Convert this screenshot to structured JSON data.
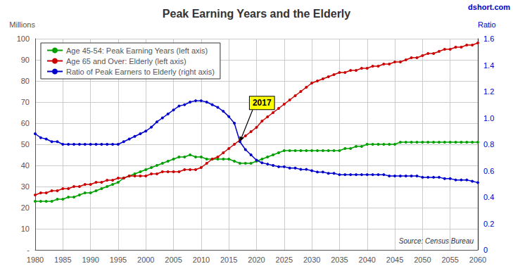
{
  "chart_data": {
    "type": "line",
    "title": "Peak Earning Years and the Elderly",
    "watermark": "dshort.com",
    "source": "Source: Census Bureau",
    "ylabel": "Millions",
    "y2label": "Ratio",
    "x": [
      1980,
      1981,
      1982,
      1983,
      1984,
      1985,
      1986,
      1987,
      1988,
      1989,
      1990,
      1991,
      1992,
      1993,
      1994,
      1995,
      1996,
      1997,
      1998,
      1999,
      2000,
      2001,
      2002,
      2003,
      2004,
      2005,
      2006,
      2007,
      2008,
      2009,
      2010,
      2011,
      2012,
      2013,
      2014,
      2015,
      2016,
      2017,
      2018,
      2019,
      2020,
      2021,
      2022,
      2023,
      2024,
      2025,
      2026,
      2027,
      2028,
      2029,
      2030,
      2031,
      2032,
      2033,
      2034,
      2035,
      2036,
      2037,
      2038,
      2039,
      2040,
      2041,
      2042,
      2043,
      2044,
      2045,
      2046,
      2047,
      2048,
      2049,
      2050,
      2051,
      2052,
      2053,
      2054,
      2055,
      2056,
      2057,
      2058,
      2059,
      2060
    ],
    "xlim": [
      1980,
      2060
    ],
    "xticks": [
      1980,
      1985,
      1990,
      1995,
      2000,
      2005,
      2010,
      2015,
      2020,
      2025,
      2030,
      2035,
      2040,
      2045,
      2050,
      2055,
      2060
    ],
    "ylim": [
      0,
      100
    ],
    "yticks": [
      {
        "value": 0,
        "label": "-"
      },
      10,
      20,
      30,
      40,
      50,
      60,
      70,
      80,
      90,
      100
    ],
    "y2lim": [
      0,
      1.6
    ],
    "y2ticks": [
      0,
      0.2,
      0.4,
      0.6,
      0.8,
      {
        "value": 1.0,
        "label": "1.0"
      },
      1.2,
      1.4,
      1.6
    ],
    "grid": true,
    "legend": "upper left",
    "marker": "circle",
    "annotations": [
      {
        "text": "2017",
        "x": 2017,
        "y": 0.82,
        "axis": "y2"
      }
    ],
    "series": [
      {
        "name": "Age 45-54: Peak Earning Years (left axis)",
        "color": "#00A000",
        "values": [
          23,
          23,
          23,
          23,
          24,
          24,
          25,
          25,
          26,
          27,
          27,
          28,
          29,
          30,
          31,
          32,
          34,
          35,
          36,
          37,
          38,
          39,
          40,
          41,
          42,
          43,
          44,
          44,
          45,
          44,
          44,
          43,
          43,
          43,
          43,
          43,
          42,
          41,
          41,
          41,
          42,
          43,
          44,
          45,
          46,
          47,
          47,
          47,
          47,
          47,
          47,
          47,
          47,
          47,
          47,
          47,
          48,
          48,
          49,
          49,
          50,
          50,
          50,
          50,
          50,
          50,
          51,
          51,
          51,
          51,
          51,
          51,
          51,
          51,
          51,
          51,
          51,
          51,
          51,
          51,
          51
        ]
      },
      {
        "name": "Age 65 and Over: Elderly (left axis)",
        "color": "#CC0000",
        "values": [
          26,
          27,
          27,
          28,
          28,
          29,
          29,
          30,
          30,
          31,
          31,
          32,
          32,
          33,
          33,
          34,
          34,
          35,
          35,
          35,
          35,
          36,
          36,
          37,
          37,
          37,
          37,
          38,
          38,
          38,
          39,
          41,
          43,
          44,
          46,
          48,
          50,
          52,
          54,
          56,
          58,
          61,
          63,
          65,
          67,
          69,
          71,
          73,
          75,
          77,
          79,
          80,
          81,
          82,
          83,
          84,
          84,
          85,
          85,
          86,
          86,
          87,
          87,
          88,
          88,
          89,
          89,
          90,
          91,
          91,
          92,
          93,
          93,
          94,
          95,
          95,
          96,
          96,
          97,
          97,
          98
        ]
      },
      {
        "name": "Ratio of Peak Earners to Elderly (right axis)",
        "color": "#0000CC",
        "axis": "y2",
        "values": [
          0.88,
          0.85,
          0.84,
          0.82,
          0.82,
          0.8,
          0.8,
          0.8,
          0.8,
          0.8,
          0.8,
          0.8,
          0.8,
          0.8,
          0.8,
          0.8,
          0.82,
          0.84,
          0.86,
          0.88,
          0.9,
          0.93,
          0.97,
          1.0,
          1.03,
          1.06,
          1.09,
          1.1,
          1.12,
          1.13,
          1.13,
          1.12,
          1.1,
          1.08,
          1.05,
          1.01,
          0.96,
          0.82,
          0.76,
          0.72,
          0.68,
          0.66,
          0.65,
          0.64,
          0.63,
          0.63,
          0.62,
          0.62,
          0.61,
          0.61,
          0.6,
          0.59,
          0.59,
          0.58,
          0.58,
          0.57,
          0.57,
          0.57,
          0.57,
          0.57,
          0.57,
          0.57,
          0.57,
          0.57,
          0.56,
          0.56,
          0.56,
          0.56,
          0.56,
          0.56,
          0.55,
          0.55,
          0.55,
          0.55,
          0.54,
          0.54,
          0.53,
          0.53,
          0.53,
          0.52,
          0.51
        ]
      }
    ]
  }
}
